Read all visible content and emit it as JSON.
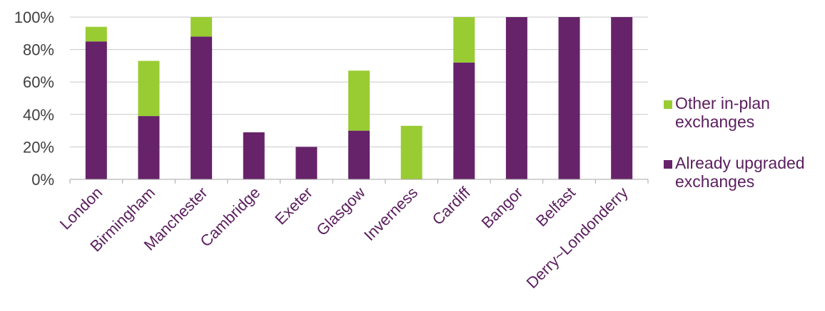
{
  "chart_data": {
    "type": "bar",
    "stacked": true,
    "categories": [
      "London",
      "Birmingham",
      "Manchester",
      "Cambridge",
      "Exeter",
      "Glasgow",
      "Inverness",
      "Cardiff",
      "Bangor",
      "Belfast",
      "Derry~Londonderry"
    ],
    "series": [
      {
        "name": "Already upgraded exchanges",
        "color": "#66236a",
        "values": [
          85,
          39,
          88,
          29,
          20,
          30,
          0,
          72,
          100,
          100,
          100
        ]
      },
      {
        "name": "Other in-plan exchanges",
        "color": "#99cc33",
        "values": [
          9,
          34,
          12,
          0,
          0,
          37,
          33,
          28,
          0,
          0,
          0
        ]
      }
    ],
    "yticks": [
      "0%",
      "20%",
      "40%",
      "60%",
      "80%",
      "100%"
    ],
    "ylim": [
      0,
      100
    ],
    "grid": true,
    "legend_position": "right",
    "legend": [
      {
        "series": 1,
        "lines": [
          "Other in-plan",
          "exchanges"
        ]
      },
      {
        "series": 0,
        "lines": [
          "Already upgraded",
          "exchanges"
        ]
      }
    ]
  }
}
